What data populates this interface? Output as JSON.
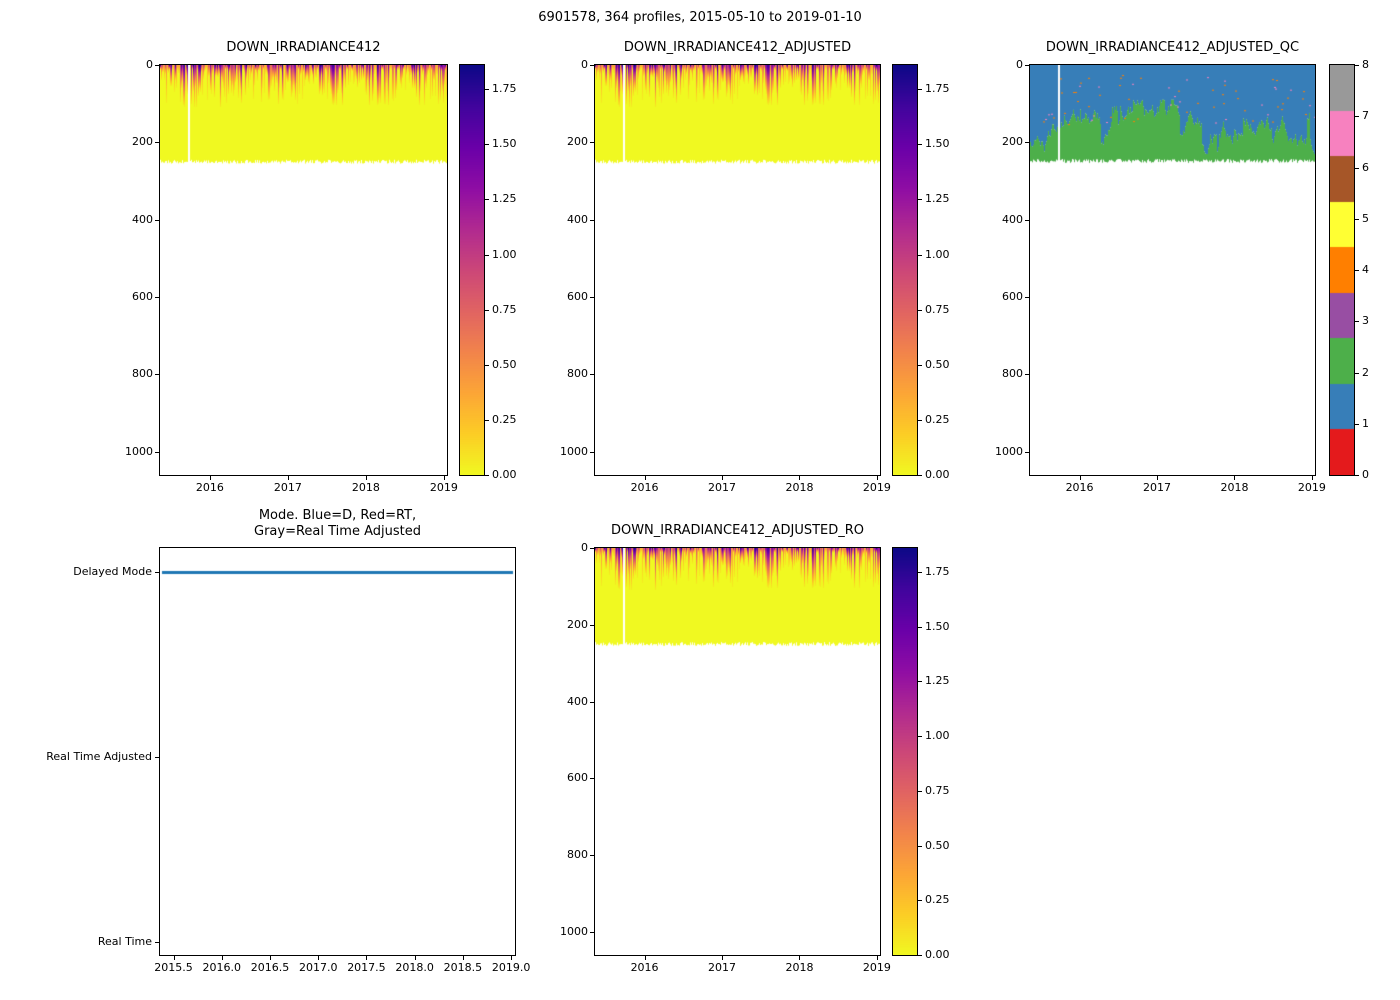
{
  "figure": {
    "title": "6901578, 364 profiles, 2015-05-10 to 2019-01-10"
  },
  "colors": {
    "plasma_r_stops": [
      "#0d0887",
      "#41049d",
      "#6a00a8",
      "#8f0da4",
      "#b12a90",
      "#cc4778",
      "#e16462",
      "#f2844b",
      "#fca636",
      "#fcce25",
      "#f0f921"
    ],
    "qc_palette": [
      "#e41a1c",
      "#377eb8",
      "#4daf4a",
      "#984ea3",
      "#ff7f00",
      "#ffff33",
      "#a65628",
      "#f781bf",
      "#999999"
    ],
    "mode_line": "#1f77b4",
    "no_data": "#ffffff"
  },
  "chart_data": [
    {
      "type": "heatmap",
      "title": "DOWN_IRRADIANCE412",
      "x_range": [
        2015.36,
        2019.04
      ],
      "x_ticks": [
        "2016",
        "2017",
        "2018",
        "2019"
      ],
      "y_range": [
        0,
        1060
      ],
      "y_ticks": [
        "0",
        "200",
        "400",
        "600",
        "800",
        "1000"
      ],
      "data": {
        "value_surface_max": 1.85,
        "background_value": 0.0,
        "surface_hot_layer_depth_m": [
          10,
          120
        ],
        "max_data_depth_m": 250,
        "gap_time": 2015.72,
        "summary": "Irradiance up to ~1.85 in a thin surface layer decaying to ~0 by ~100 m; near-zero (yellow) down to ~250 m; no data below ~250 m; one missing-profile gap near 2015.7."
      },
      "colorbar": {
        "colormap": "plasma_r",
        "vmin": 0,
        "vmax": 1.86,
        "ticks": [
          "0.00",
          "0.25",
          "0.50",
          "0.75",
          "1.00",
          "1.25",
          "1.50",
          "1.75"
        ]
      }
    },
    {
      "type": "heatmap",
      "title": "DOWN_IRRADIANCE412_ADJUSTED",
      "x_range": [
        2015.36,
        2019.04
      ],
      "x_ticks": [
        "2016",
        "2017",
        "2018",
        "2019"
      ],
      "y_range": [
        0,
        1060
      ],
      "y_ticks": [
        "0",
        "200",
        "400",
        "600",
        "800",
        "1000"
      ],
      "data": {
        "value_surface_max": 1.85,
        "background_value": 0.0,
        "surface_hot_layer_depth_m": [
          10,
          120
        ],
        "max_data_depth_m": 250,
        "gap_time": 2015.72,
        "summary": "Adjusted irradiance, visually identical to raw: surface maximum ~1.85 decaying to ~0, data to ~250 m."
      },
      "colorbar": {
        "colormap": "plasma_r",
        "vmin": 0,
        "vmax": 1.86,
        "ticks": [
          "0.00",
          "0.25",
          "0.50",
          "0.75",
          "1.00",
          "1.25",
          "1.50",
          "1.75"
        ]
      }
    },
    {
      "type": "heatmap",
      "title": "DOWN_IRRADIANCE412_ADJUSTED_QC",
      "x_range": [
        2015.36,
        2019.04
      ],
      "x_ticks": [
        "2016",
        "2017",
        "2018",
        "2019"
      ],
      "y_range": [
        0,
        1060
      ],
      "y_ticks": [
        "0",
        "200",
        "400",
        "600",
        "800",
        "1000"
      ],
      "data": {
        "qc_upper_flag": 1,
        "qc_lower_flag": 2,
        "flag_boundary_depth_m": [
          90,
          230
        ],
        "speck_flags": [
          4,
          7
        ],
        "max_data_depth_m": 250,
        "gap_time": 2015.72,
        "summary": "QC flag 1 (blue) from surface to a ragged ~100-230 m boundary over QC flag 2 (green) down to ~250 m; sparse flag 4/7 specks in the blue zone; no data below ~250 m."
      },
      "colorbar": {
        "colormap": "qc_palette",
        "vmin": 0,
        "vmax": 8,
        "ticks": [
          "0",
          "1",
          "2",
          "3",
          "4",
          "5",
          "6",
          "7",
          "8"
        ]
      }
    },
    {
      "type": "line",
      "title": "Mode. Blue=D, Red=RT,\nGray=Real Time Adjusted",
      "x_range": [
        2015.36,
        2019.04
      ],
      "x_ticks": [
        "2015.5",
        "2016.0",
        "2016.5",
        "2017.0",
        "2017.5",
        "2018.0",
        "2018.5",
        "2019.0"
      ],
      "y_categories": [
        "Real Time",
        "Real Time Adjusted",
        "Delayed Mode"
      ],
      "series": [
        {
          "name": "mode",
          "constant": "Delayed Mode",
          "color": "#1f77b4"
        }
      ],
      "summary": "All 364 profiles are Delayed Mode: a single blue horizontal line at the Delayed Mode level across the whole record."
    },
    {
      "type": "heatmap",
      "title": "DOWN_IRRADIANCE412_ADJUSTED_RO",
      "x_range": [
        2015.36,
        2019.04
      ],
      "x_ticks": [
        "2016",
        "2017",
        "2018",
        "2019"
      ],
      "y_range": [
        0,
        1060
      ],
      "y_ticks": [
        "0",
        "200",
        "400",
        "600",
        "800",
        "1000"
      ],
      "data": {
        "value_surface_max": 1.85,
        "background_value": 0.0,
        "surface_hot_layer_depth_m": [
          10,
          120
        ],
        "max_data_depth_m": 250,
        "gap_time": 2015.72,
        "summary": "Adjusted_RO irradiance, visually identical to adjusted: surface maximum ~1.85 decaying to ~0, data to ~250 m."
      },
      "colorbar": {
        "colormap": "plasma_r",
        "vmin": 0,
        "vmax": 1.86,
        "ticks": [
          "0.00",
          "0.25",
          "0.50",
          "0.75",
          "1.00",
          "1.25",
          "1.50",
          "1.75"
        ]
      }
    }
  ]
}
